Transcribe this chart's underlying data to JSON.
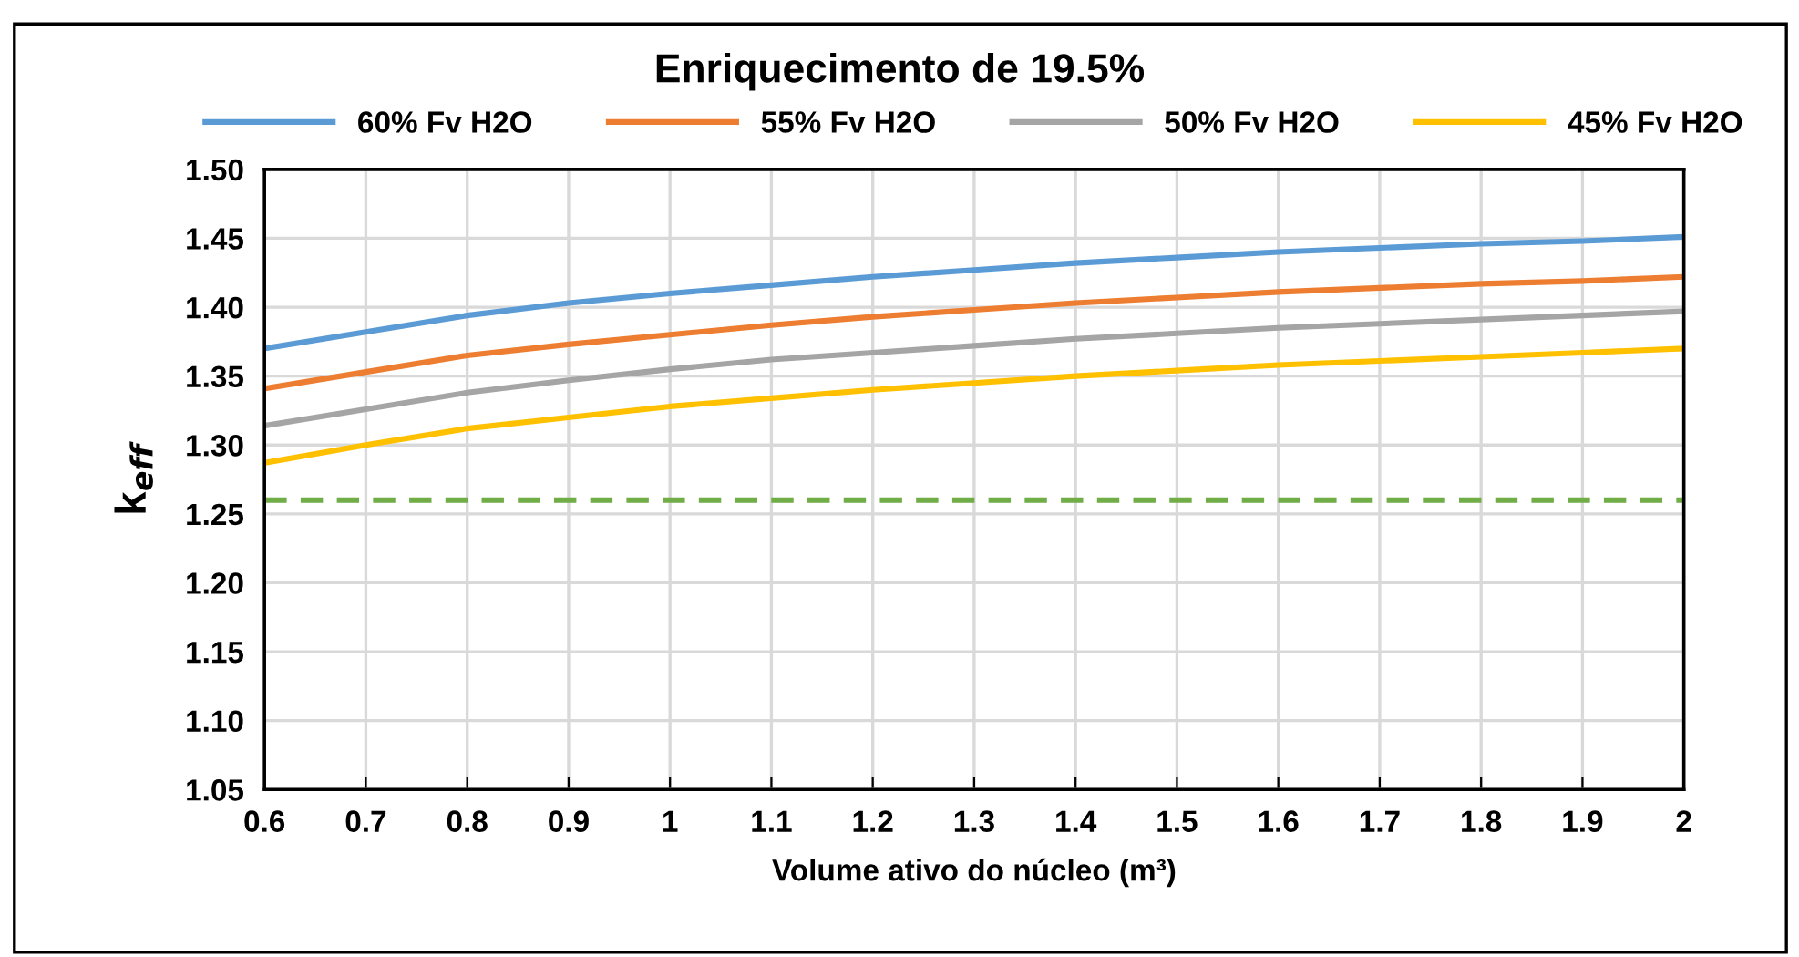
{
  "chart_data": {
    "type": "line",
    "title": "Enriquecimento de 19.5%",
    "xlabel": "Volume ativo do núcleo (m³)",
    "ylabel": "k$_{eff}$",
    "x": [
      0.6,
      0.7,
      0.8,
      0.9,
      1.0,
      1.1,
      1.2,
      1.3,
      1.4,
      1.5,
      1.6,
      1.7,
      1.8,
      1.9,
      2.0
    ],
    "series": [
      {
        "name": "60% Fv H2O",
        "color": "#5b9bd5",
        "values": [
          1.37,
          1.382,
          1.394,
          1.403,
          1.41,
          1.416,
          1.422,
          1.427,
          1.432,
          1.436,
          1.44,
          1.443,
          1.446,
          1.448,
          1.451
        ]
      },
      {
        "name": "55% Fv H2O",
        "color": "#ed7d31",
        "values": [
          1.341,
          1.353,
          1.365,
          1.373,
          1.38,
          1.387,
          1.393,
          1.398,
          1.403,
          1.407,
          1.411,
          1.414,
          1.417,
          1.419,
          1.422
        ]
      },
      {
        "name": "50% Fv H2O",
        "color": "#a5a5a5",
        "values": [
          1.314,
          1.326,
          1.338,
          1.347,
          1.355,
          1.362,
          1.367,
          1.372,
          1.377,
          1.381,
          1.385,
          1.388,
          1.391,
          1.394,
          1.397
        ]
      },
      {
        "name": "45% Fv H2O",
        "color": "#ffc000",
        "values": [
          1.287,
          1.3,
          1.312,
          1.32,
          1.328,
          1.334,
          1.34,
          1.345,
          1.35,
          1.354,
          1.358,
          1.361,
          1.364,
          1.367,
          1.37
        ]
      }
    ],
    "ref_lines": [
      {
        "axis": "y",
        "value": 1.26,
        "label": null,
        "color": "#70ad47",
        "line_style": "dashed"
      }
    ],
    "xlim": [
      0.6,
      2
    ],
    "ylim": [
      1.05,
      1.5
    ],
    "xticks": [
      0.6,
      0.7,
      0.8,
      0.9,
      1,
      1.1,
      1.2,
      1.3,
      1.4,
      1.5,
      1.6,
      1.7,
      1.8,
      1.9,
      2
    ],
    "yticks": [
      {
        "value": 1.05,
        "label": "1.05"
      },
      {
        "value": 1.1,
        "label": "1.10"
      },
      {
        "value": 1.15,
        "label": "1.15"
      },
      {
        "value": 1.2,
        "label": "1.20"
      },
      {
        "value": 1.25,
        "label": "1.25"
      },
      {
        "value": 1.3,
        "label": "1.30"
      },
      {
        "value": 1.35,
        "label": "1.35"
      },
      {
        "value": 1.4,
        "label": "1.40"
      },
      {
        "value": 1.45,
        "label": "1.45"
      },
      {
        "value": 1.5,
        "label": "1.50"
      }
    ],
    "grid": true,
    "legend": "top",
    "marker": "none",
    "line_style": "solid"
  }
}
